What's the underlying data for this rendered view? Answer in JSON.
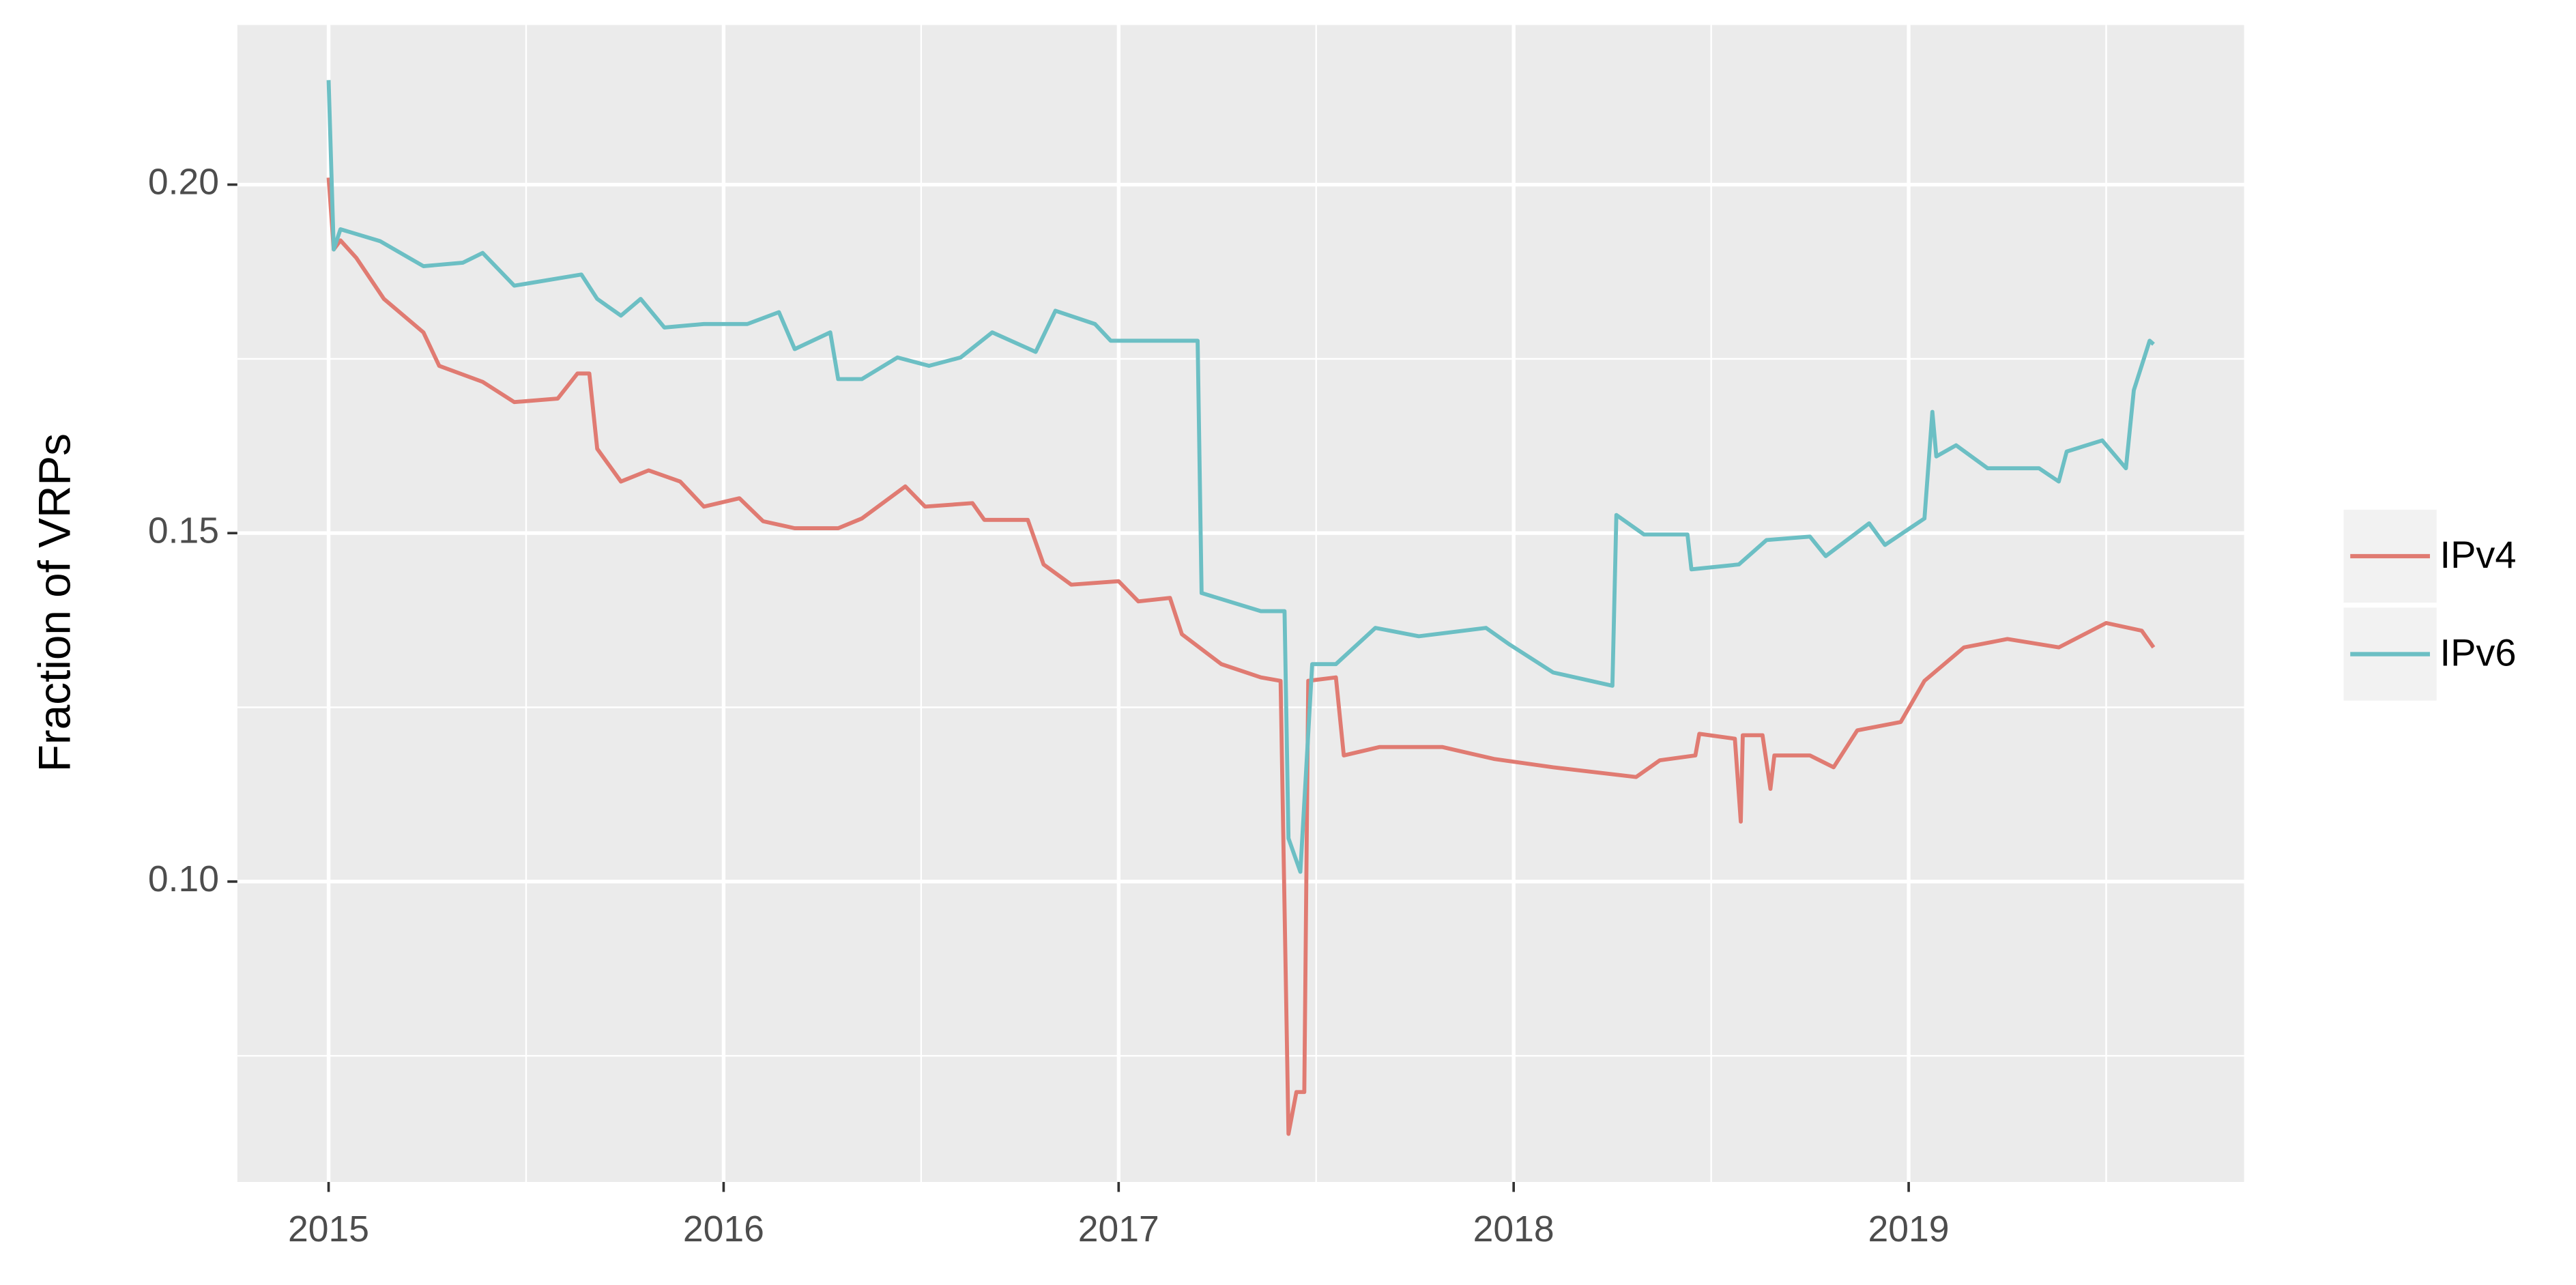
{
  "chart_data": {
    "type": "line",
    "y_label": "Fraction of VRPs",
    "xlim": [
      2014.769,
      2019.849
    ],
    "xticks": [
      2015,
      2016,
      2017,
      2018,
      2019
    ],
    "x_minor_grid": [
      2015.5,
      2016.5,
      2017.5,
      2018.5,
      2019.5
    ],
    "ylim": [
      0.0569,
      0.2229
    ],
    "yticks": [
      {
        "value": 0.1,
        "label": "0.10"
      },
      {
        "value": 0.15,
        "label": "0.15"
      },
      {
        "value": 0.2,
        "label": "0.20"
      }
    ],
    "y_minor_grid": [
      0.075,
      0.125,
      0.175
    ],
    "grid": true,
    "legend_position": "right",
    "series": [
      {
        "name": "IPv4",
        "color": "#e07b72",
        "x": [
          2015.0,
          2015.013,
          2015.03,
          2015.07,
          2015.14,
          2015.24,
          2015.28,
          2015.39,
          2015.47,
          2015.58,
          2015.63,
          2015.66,
          2015.68,
          2015.74,
          2015.81,
          2015.89,
          2015.95,
          2016.04,
          2016.1,
          2016.18,
          2016.29,
          2016.35,
          2016.46,
          2016.51,
          2016.63,
          2016.66,
          2016.77,
          2016.81,
          2016.88,
          2017.0,
          2017.05,
          2017.13,
          2017.16,
          2017.26,
          2017.36,
          2017.41,
          2017.43,
          2017.45,
          2017.47,
          2017.48,
          2017.55,
          2017.57,
          2017.66,
          2017.82,
          2017.95,
          2018.1,
          2018.31,
          2018.37,
          2018.46,
          2018.47,
          2018.56,
          2018.575,
          2018.58,
          2018.63,
          2018.65,
          2018.66,
          2018.75,
          2018.81,
          2018.87,
          2018.98,
          2019.04,
          2019.14,
          2019.25,
          2019.38,
          2019.5,
          2019.59,
          2019.62
        ],
        "values": [
          0.201,
          0.1907,
          0.192,
          0.1895,
          0.1836,
          0.1788,
          0.174,
          0.1717,
          0.1688,
          0.1693,
          0.1729,
          0.1729,
          0.1621,
          0.1574,
          0.159,
          0.1574,
          0.1538,
          0.155,
          0.1517,
          0.1507,
          0.1507,
          0.1521,
          0.1567,
          0.1538,
          0.1543,
          0.1519,
          0.1519,
          0.1455,
          0.1426,
          0.1431,
          0.1402,
          0.1407,
          0.1355,
          0.1312,
          0.1293,
          0.1288,
          0.0638,
          0.0698,
          0.0698,
          0.1288,
          0.1293,
          0.1181,
          0.1193,
          0.1193,
          0.1176,
          0.1164,
          0.115,
          0.1174,
          0.1181,
          0.1212,
          0.1205,
          0.1086,
          0.121,
          0.121,
          0.1133,
          0.1181,
          0.1181,
          0.1164,
          0.1217,
          0.1229,
          0.1288,
          0.1336,
          0.1348,
          0.1336,
          0.1371,
          0.136,
          0.1336
        ]
      },
      {
        "name": "IPv6",
        "color": "#6cbfc4",
        "x": [
          2015.0,
          2015.013,
          2015.03,
          2015.13,
          2015.24,
          2015.34,
          2015.39,
          2015.47,
          2015.64,
          2015.68,
          2015.74,
          2015.79,
          2015.85,
          2015.95,
          2016.06,
          2016.14,
          2016.18,
          2016.27,
          2016.29,
          2016.35,
          2016.44,
          2016.52,
          2016.6,
          2016.68,
          2016.79,
          2016.84,
          2016.94,
          2016.98,
          2017.11,
          2017.2,
          2017.21,
          2017.36,
          2017.42,
          2017.43,
          2017.46,
          2017.49,
          2017.55,
          2017.65,
          2017.76,
          2017.93,
          2017.99,
          2018.1,
          2018.25,
          2018.26,
          2018.33,
          2018.44,
          2018.45,
          2018.57,
          2018.64,
          2018.75,
          2018.79,
          2018.9,
          2018.94,
          2019.04,
          2019.06,
          2019.07,
          2019.12,
          2019.2,
          2019.33,
          2019.38,
          2019.4,
          2019.49,
          2019.55,
          2019.57,
          2019.61,
          2019.62
        ],
        "values": [
          0.215,
          0.1907,
          0.1936,
          0.1919,
          0.1883,
          0.1888,
          0.1902,
          0.1855,
          0.1871,
          0.1836,
          0.1812,
          0.1836,
          0.1795,
          0.18,
          0.18,
          0.1817,
          0.1764,
          0.1788,
          0.1721,
          0.1721,
          0.1752,
          0.174,
          0.1752,
          0.1788,
          0.176,
          0.1819,
          0.18,
          0.1776,
          0.1776,
          0.1776,
          0.1414,
          0.1388,
          0.1388,
          0.1062,
          0.1014,
          0.1312,
          0.1312,
          0.1364,
          0.1352,
          0.1364,
          0.134,
          0.13,
          0.1281,
          0.1526,
          0.1498,
          0.1498,
          0.1448,
          0.1455,
          0.149,
          0.1495,
          0.1467,
          0.1514,
          0.1483,
          0.1521,
          0.1674,
          0.161,
          0.1626,
          0.1593,
          0.1593,
          0.1574,
          0.1617,
          0.1633,
          0.1593,
          0.1705,
          0.1776,
          0.1771
        ]
      }
    ]
  }
}
